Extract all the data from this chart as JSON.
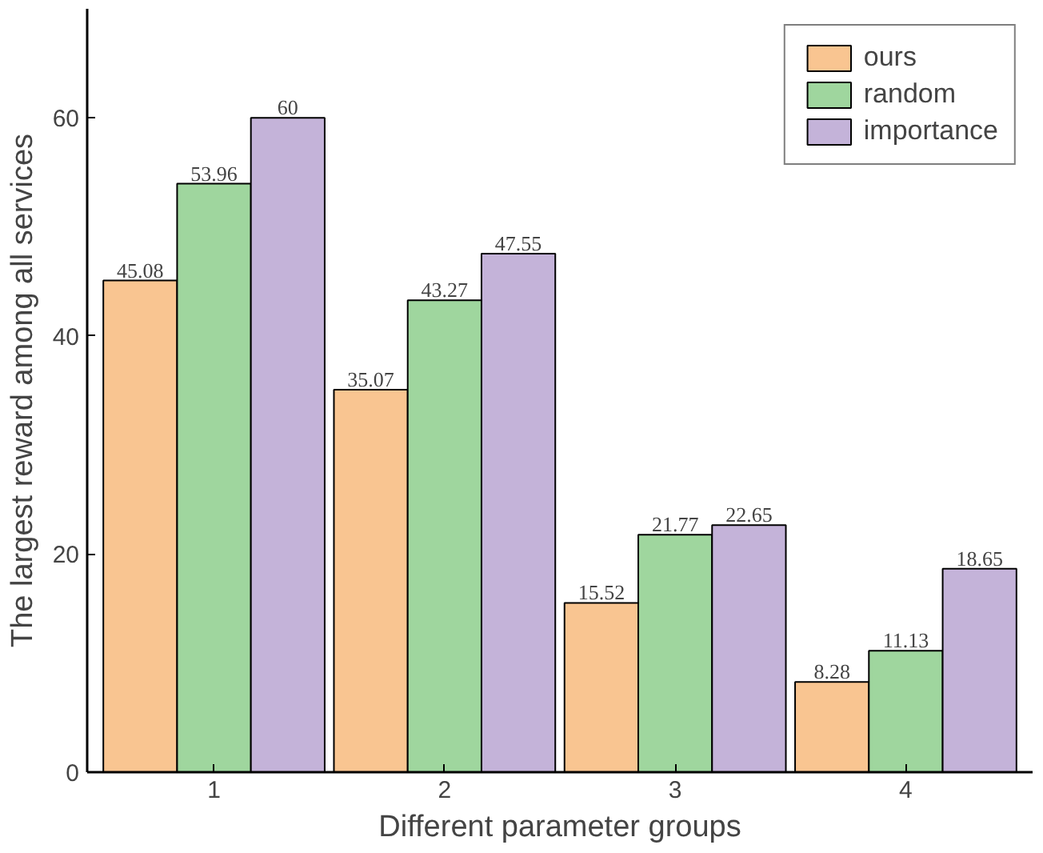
{
  "chart_data": {
    "type": "bar",
    "xlabel": "Different parameter groups",
    "ylabel": "The largest reward among all services",
    "categories": [
      "1",
      "2",
      "3",
      "4"
    ],
    "series": [
      {
        "name": "ours",
        "color": "#f9c591",
        "values": [
          45.08,
          35.07,
          15.52,
          8.28
        ]
      },
      {
        "name": "random",
        "color": "#9fd69e",
        "values": [
          53.96,
          43.27,
          21.77,
          11.13
        ]
      },
      {
        "name": "importance",
        "color": "#c4b3d9",
        "values": [
          60,
          47.55,
          22.65,
          18.65
        ]
      }
    ],
    "ylim": [
      0,
      70
    ],
    "yticks": [
      0,
      20,
      40,
      60
    ],
    "data_labels": true,
    "legend": "top right",
    "grid": false
  }
}
